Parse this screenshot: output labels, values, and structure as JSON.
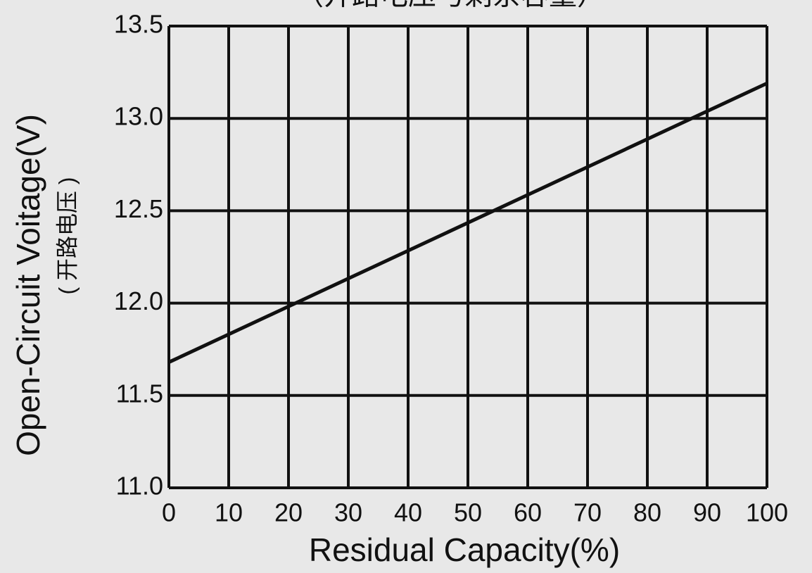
{
  "chart_data": {
    "type": "line",
    "title": "（开路电压与剩余容量）",
    "x_label": "Residual Capacity(%)",
    "y_label": "Open-Circuit Voitage(V)",
    "y_label_sub": "( 开路电压 )",
    "x": [
      0,
      100
    ],
    "series": [
      {
        "name": "Open-Circuit Voltage",
        "color": "#111111",
        "values": [
          11.68,
          13.19
        ]
      }
    ],
    "xlim": [
      0,
      100
    ],
    "xticks": [
      0,
      10,
      20,
      30,
      40,
      50,
      60,
      70,
      80,
      90,
      100
    ],
    "ylim": [
      11,
      13.5
    ],
    "yticks": [
      {
        "value": 11,
        "label": "11.0"
      },
      11.5,
      {
        "value": 12,
        "label": "12.0"
      },
      12.5,
      {
        "value": 13,
        "label": "13.0"
      },
      13.5
    ],
    "grid": true
  }
}
